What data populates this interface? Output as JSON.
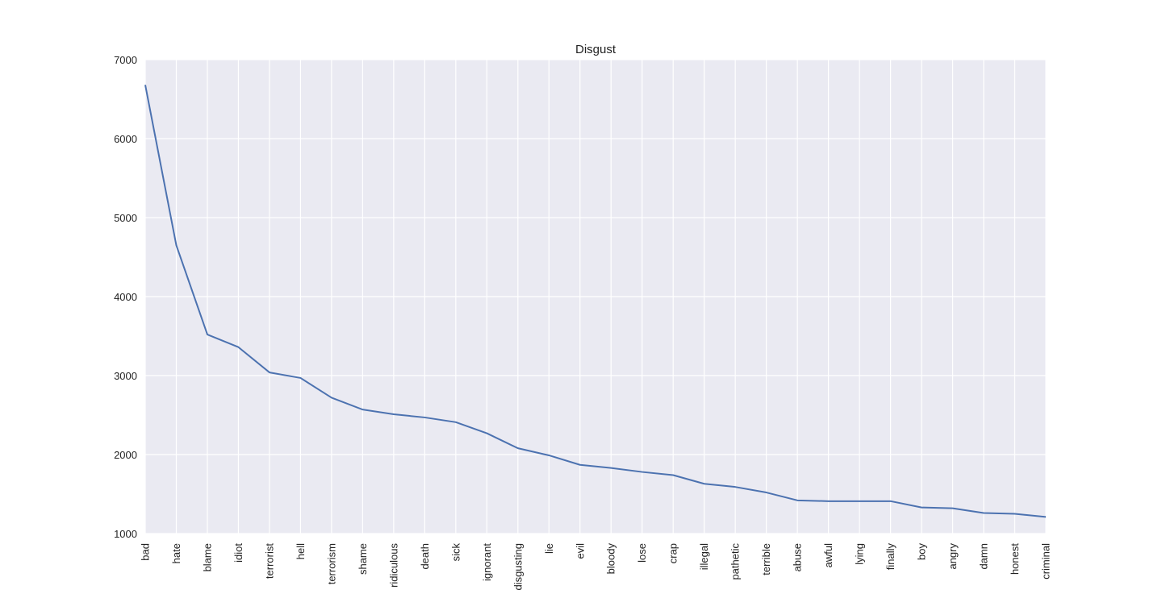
{
  "chart_data": {
    "type": "line",
    "title": "Disgust",
    "xlabel": "",
    "ylabel": "",
    "ylim": [
      1000,
      7000
    ],
    "yticks": [
      1000,
      2000,
      3000,
      4000,
      5000,
      6000,
      7000
    ],
    "grid": true,
    "legend": "none",
    "categories": [
      "bad",
      "hate",
      "blame",
      "idiot",
      "terrorist",
      "hell",
      "terrorism",
      "shame",
      "ridiculous",
      "death",
      "sick",
      "ignorant",
      "disgusting",
      "lie",
      "evil",
      "bloody",
      "lose",
      "crap",
      "illegal",
      "pathetic",
      "terrible",
      "abuse",
      "awful",
      "lying",
      "finally",
      "boy",
      "angry",
      "damn",
      "honest",
      "criminal"
    ],
    "series": [
      {
        "color": "#4c72b0",
        "values": [
          6680,
          4650,
          3520,
          3360,
          3040,
          2970,
          2720,
          2570,
          2510,
          2470,
          2410,
          2270,
          2080,
          1990,
          1870,
          1830,
          1780,
          1740,
          1630,
          1590,
          1520,
          1420,
          1410,
          1410,
          1410,
          1330,
          1320,
          1260,
          1250,
          1210
        ]
      }
    ],
    "colors": {
      "plot_bg": "#eaeaf2",
      "grid": "#ffffff",
      "text": "#222222"
    }
  }
}
